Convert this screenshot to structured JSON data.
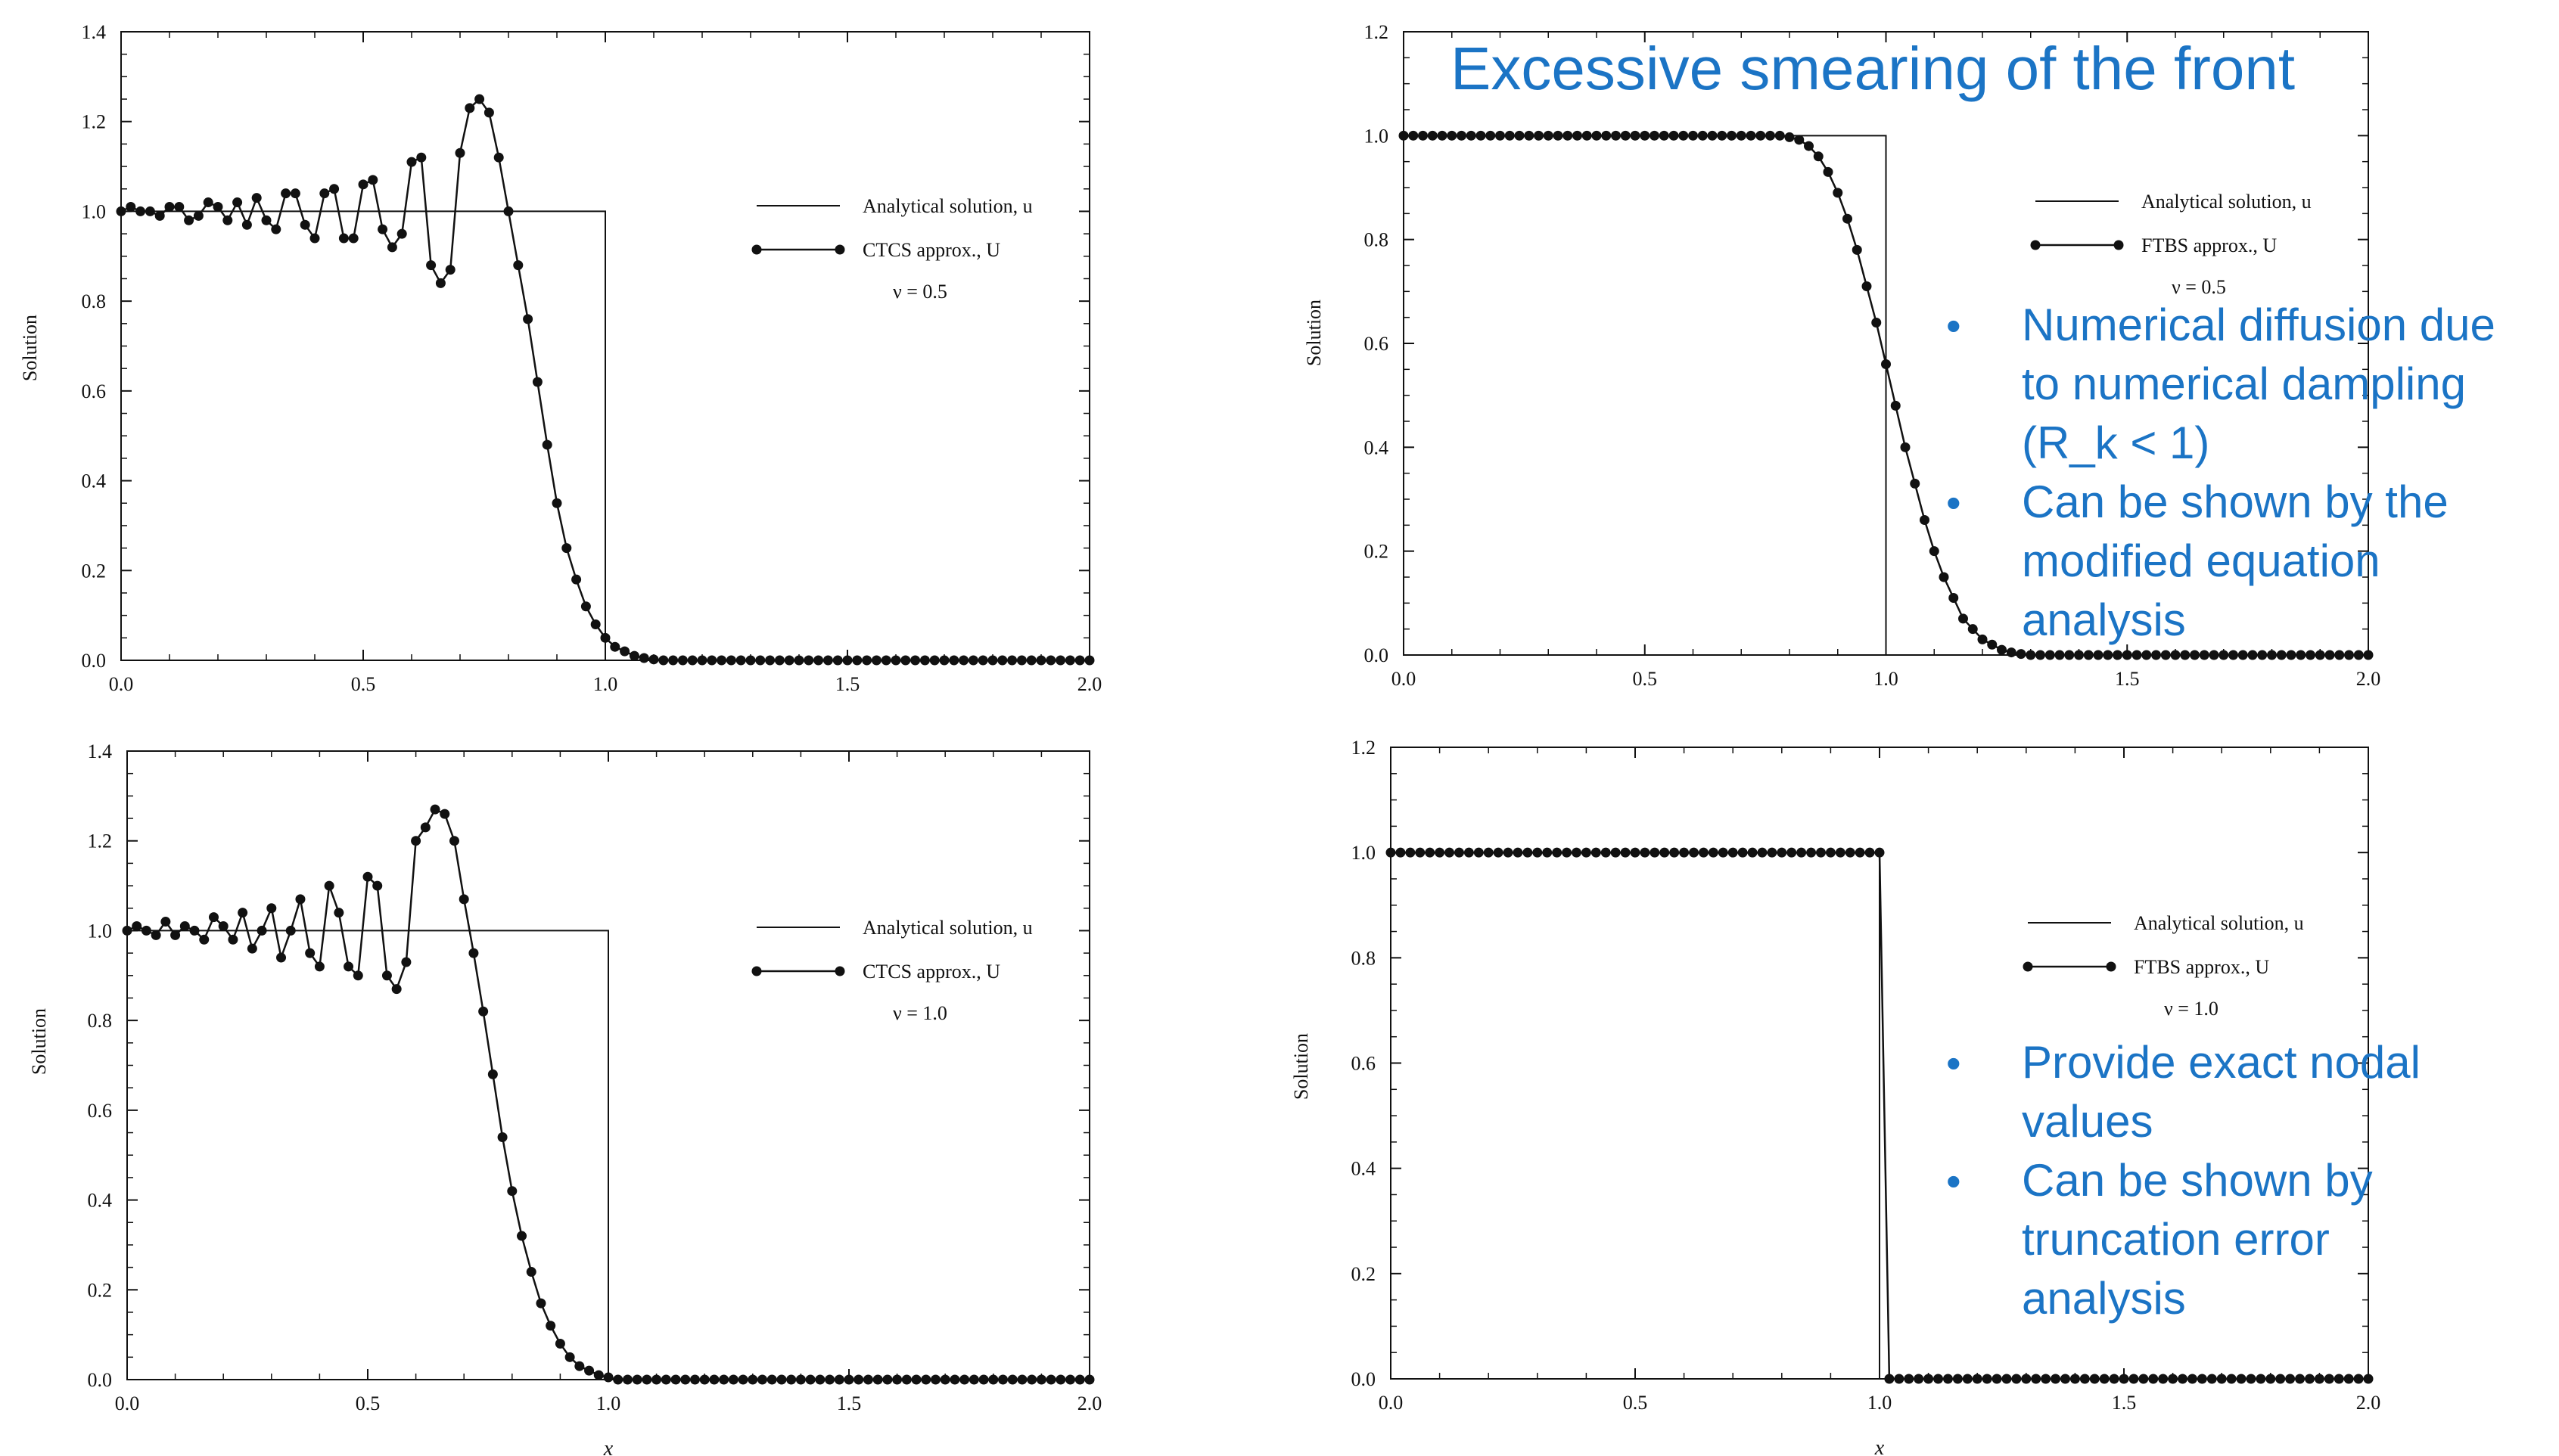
{
  "annotations": {
    "title": "Excessive smearing of the front",
    "top_right_bullets": [
      {
        "bullet": "•",
        "lines": [
          "Numerical diffusion due",
          "to numerical dampling",
          "(R_k < 1)"
        ]
      },
      {
        "bullet": "•",
        "lines": [
          "Can be shown by the",
          "modified equation",
          "analysis"
        ]
      }
    ],
    "bottom_right_bullets": [
      {
        "bullet": "•",
        "lines": [
          "Provide exact nodal",
          "values"
        ]
      },
      {
        "bullet": "•",
        "lines": [
          "Can be shown by",
          "truncation error",
          "analysis"
        ]
      }
    ],
    "color": "#1b74c5"
  },
  "chart_data": [
    {
      "type": "line",
      "ylabel": "Solution",
      "xlabel": "",
      "xlim": [
        0.0,
        2.0
      ],
      "ylim": [
        0.0,
        1.4
      ],
      "xticks": [
        "0.0",
        "0.5",
        "1.0",
        "1.5",
        "2.0"
      ],
      "yticks": [
        "0.0",
        "0.2",
        "0.4",
        "0.6",
        "0.8",
        "1.0",
        "1.2",
        "1.4"
      ],
      "legend": {
        "analytical": "Analytical solution, u",
        "approx": "CTCS approx., U",
        "param": "ν = 0.5",
        "placement": "right"
      },
      "series": [
        {
          "name": "Analytical solution, u",
          "kind": "step",
          "x": [
            0.0,
            1.0,
            1.0,
            2.0
          ],
          "y": [
            1.0,
            1.0,
            0.0,
            0.0
          ]
        },
        {
          "name": "CTCS approx., U",
          "kind": "markers",
          "x": [
            0.0,
            0.02,
            0.04,
            0.06,
            0.08,
            0.1,
            0.12,
            0.14,
            0.16,
            0.18,
            0.2,
            0.22,
            0.24,
            0.26,
            0.28,
            0.3,
            0.32,
            0.34,
            0.36,
            0.38,
            0.4,
            0.42,
            0.44,
            0.46,
            0.48,
            0.5,
            0.52,
            0.54,
            0.56,
            0.58,
            0.6,
            0.62,
            0.64,
            0.66,
            0.68,
            0.7,
            0.72,
            0.74,
            0.76,
            0.78,
            0.8,
            0.82,
            0.84,
            0.86,
            0.88,
            0.9,
            0.92,
            0.94,
            0.96,
            0.98,
            1.0,
            1.02,
            1.04,
            1.06,
            1.08,
            1.1,
            1.12,
            1.14,
            1.16,
            1.18,
            1.2,
            1.22,
            1.24,
            1.26,
            1.28,
            1.3,
            1.32,
            1.34,
            1.36,
            1.38,
            1.4,
            1.42,
            1.44,
            1.46,
            1.48,
            1.5,
            1.52,
            1.54,
            1.56,
            1.58,
            1.6,
            1.62,
            1.64,
            1.66,
            1.68,
            1.7,
            1.72,
            1.74,
            1.76,
            1.78,
            1.8,
            1.82,
            1.84,
            1.86,
            1.88,
            1.9,
            1.92,
            1.94,
            1.96,
            1.98,
            2.0
          ],
          "y": [
            1.0,
            1.01,
            1.0,
            1.0,
            0.99,
            1.01,
            1.01,
            0.98,
            0.99,
            1.02,
            1.01,
            0.98,
            1.02,
            0.97,
            1.03,
            0.98,
            0.96,
            1.04,
            1.04,
            0.97,
            0.94,
            1.04,
            1.05,
            0.94,
            0.94,
            1.06,
            1.07,
            0.96,
            0.92,
            0.95,
            1.11,
            1.12,
            0.88,
            0.84,
            0.87,
            1.13,
            1.23,
            1.25,
            1.22,
            1.12,
            1.0,
            0.88,
            0.76,
            0.62,
            0.48,
            0.35,
            0.25,
            0.18,
            0.12,
            0.08,
            0.05,
            0.03,
            0.02,
            0.01,
            0.005,
            0.002,
            0.0,
            0.0,
            0.0,
            0.0,
            0.0,
            0.0,
            0.0,
            0.0,
            0.0,
            0.0,
            0.0,
            0.0,
            0.0,
            0.0,
            0.0,
            0.0,
            0.0,
            0.0,
            0.0,
            0.0,
            0.0,
            0.0,
            0.0,
            0.0,
            0.0,
            0.0,
            0.0,
            0.0,
            0.0,
            0.0,
            0.0,
            0.0,
            0.0,
            0.0,
            0.0,
            0.0,
            0.0,
            0.0,
            0.0,
            0.0,
            0.0,
            0.0,
            0.0,
            0.0,
            0.0
          ]
        }
      ]
    },
    {
      "type": "line",
      "ylabel": "Solution",
      "xlabel": "",
      "xlim": [
        0.0,
        2.0
      ],
      "ylim": [
        0.0,
        1.2
      ],
      "xticks": [
        "0.0",
        "0.5",
        "1.0",
        "1.5",
        "2.0"
      ],
      "yticks": [
        "0.0",
        "0.2",
        "0.4",
        "0.6",
        "0.8",
        "1.0",
        "1.2"
      ],
      "legend": {
        "analytical": "Analytical solution, u",
        "approx": "FTBS approx., U",
        "param": "ν = 0.5",
        "placement": "right"
      },
      "series": [
        {
          "name": "Analytical solution, u",
          "kind": "step",
          "x": [
            0.0,
            1.0,
            1.0,
            2.0
          ],
          "y": [
            1.0,
            1.0,
            0.0,
            0.0
          ]
        },
        {
          "name": "FTBS approx., U",
          "kind": "markers",
          "x": [
            0.0,
            0.02,
            0.04,
            0.06,
            0.08,
            0.1,
            0.12,
            0.14,
            0.16,
            0.18,
            0.2,
            0.22,
            0.24,
            0.26,
            0.28,
            0.3,
            0.32,
            0.34,
            0.36,
            0.38,
            0.4,
            0.42,
            0.44,
            0.46,
            0.48,
            0.5,
            0.52,
            0.54,
            0.56,
            0.58,
            0.6,
            0.62,
            0.64,
            0.66,
            0.68,
            0.7,
            0.72,
            0.74,
            0.76,
            0.78,
            0.8,
            0.82,
            0.84,
            0.86,
            0.88,
            0.9,
            0.92,
            0.94,
            0.96,
            0.98,
            1.0,
            1.02,
            1.04,
            1.06,
            1.08,
            1.1,
            1.12,
            1.14,
            1.16,
            1.18,
            1.2,
            1.22,
            1.24,
            1.26,
            1.28,
            1.3,
            1.32,
            1.34,
            1.36,
            1.38,
            1.4,
            1.42,
            1.44,
            1.46,
            1.48,
            1.5,
            1.52,
            1.54,
            1.56,
            1.58,
            1.6,
            1.62,
            1.64,
            1.66,
            1.68,
            1.7,
            1.72,
            1.74,
            1.76,
            1.78,
            1.8,
            1.82,
            1.84,
            1.86,
            1.88,
            1.9,
            1.92,
            1.94,
            1.96,
            1.98,
            2.0
          ],
          "y": [
            1.0,
            1.0,
            1.0,
            1.0,
            1.0,
            1.0,
            1.0,
            1.0,
            1.0,
            1.0,
            1.0,
            1.0,
            1.0,
            1.0,
            1.0,
            1.0,
            1.0,
            1.0,
            1.0,
            1.0,
            1.0,
            1.0,
            1.0,
            1.0,
            1.0,
            1.0,
            1.0,
            1.0,
            1.0,
            1.0,
            1.0,
            1.0,
            1.0,
            1.0,
            1.0,
            1.0,
            1.0,
            1.0,
            1.0,
            1.0,
            0.997,
            0.992,
            0.98,
            0.96,
            0.93,
            0.89,
            0.84,
            0.78,
            0.71,
            0.64,
            0.56,
            0.48,
            0.4,
            0.33,
            0.26,
            0.2,
            0.15,
            0.11,
            0.07,
            0.05,
            0.03,
            0.02,
            0.01,
            0.005,
            0.002,
            0.0,
            0.0,
            0.0,
            0.0,
            0.0,
            0.0,
            0.0,
            0.0,
            0.0,
            0.0,
            0.0,
            0.0,
            0.0,
            0.0,
            0.0,
            0.0,
            0.0,
            0.0,
            0.0,
            0.0,
            0.0,
            0.0,
            0.0,
            0.0,
            0.0,
            0.0,
            0.0,
            0.0,
            0.0,
            0.0,
            0.0,
            0.0,
            0.0,
            0.0,
            0.0,
            0.0
          ]
        }
      ]
    },
    {
      "type": "line",
      "ylabel": "Solution",
      "xlabel": "x",
      "xlim": [
        0.0,
        2.0
      ],
      "ylim": [
        0.0,
        1.4
      ],
      "xticks": [
        "0.0",
        "0.5",
        "1.0",
        "1.5",
        "2.0"
      ],
      "yticks": [
        "0.0",
        "0.2",
        "0.4",
        "0.6",
        "0.8",
        "1.0",
        "1.2",
        "1.4"
      ],
      "legend": {
        "analytical": "Analytical solution, u",
        "approx": "CTCS approx., U",
        "param": "ν = 1.0",
        "placement": "right"
      },
      "series": [
        {
          "name": "Analytical solution, u",
          "kind": "step",
          "x": [
            0.0,
            1.0,
            1.0,
            2.0
          ],
          "y": [
            1.0,
            1.0,
            0.0,
            0.0
          ]
        },
        {
          "name": "CTCS approx., U",
          "kind": "markers",
          "x": [
            0.0,
            0.02,
            0.04,
            0.06,
            0.08,
            0.1,
            0.12,
            0.14,
            0.16,
            0.18,
            0.2,
            0.22,
            0.24,
            0.26,
            0.28,
            0.3,
            0.32,
            0.34,
            0.36,
            0.38,
            0.4,
            0.42,
            0.44,
            0.46,
            0.48,
            0.5,
            0.52,
            0.54,
            0.56,
            0.58,
            0.6,
            0.62,
            0.64,
            0.66,
            0.68,
            0.7,
            0.72,
            0.74,
            0.76,
            0.78,
            0.8,
            0.82,
            0.84,
            0.86,
            0.88,
            0.9,
            0.92,
            0.94,
            0.96,
            0.98,
            1.0,
            1.02,
            1.04,
            1.06,
            1.08,
            1.1,
            1.12,
            1.14,
            1.16,
            1.18,
            1.2,
            1.22,
            1.24,
            1.26,
            1.28,
            1.3,
            1.32,
            1.34,
            1.36,
            1.38,
            1.4,
            1.42,
            1.44,
            1.46,
            1.48,
            1.5,
            1.52,
            1.54,
            1.56,
            1.58,
            1.6,
            1.62,
            1.64,
            1.66,
            1.68,
            1.7,
            1.72,
            1.74,
            1.76,
            1.78,
            1.8,
            1.82,
            1.84,
            1.86,
            1.88,
            1.9,
            1.92,
            1.94,
            1.96,
            1.98,
            2.0
          ],
          "y": [
            1.0,
            1.01,
            1.0,
            0.99,
            1.02,
            0.99,
            1.01,
            1.0,
            0.98,
            1.03,
            1.01,
            0.98,
            1.04,
            0.96,
            1.0,
            1.05,
            0.94,
            1.0,
            1.07,
            0.95,
            0.92,
            1.1,
            1.04,
            0.92,
            0.9,
            1.12,
            1.1,
            0.9,
            0.87,
            0.93,
            1.2,
            1.23,
            1.27,
            1.26,
            1.2,
            1.07,
            0.95,
            0.82,
            0.68,
            0.54,
            0.42,
            0.32,
            0.24,
            0.17,
            0.12,
            0.08,
            0.05,
            0.03,
            0.02,
            0.01,
            0.005,
            0.0,
            0.0,
            0.0,
            0.0,
            0.0,
            0.0,
            0.0,
            0.0,
            0.0,
            0.0,
            0.0,
            0.0,
            0.0,
            0.0,
            0.0,
            0.0,
            0.0,
            0.0,
            0.0,
            0.0,
            0.0,
            0.0,
            0.0,
            0.0,
            0.0,
            0.0,
            0.0,
            0.0,
            0.0,
            0.0,
            0.0,
            0.0,
            0.0,
            0.0,
            0.0,
            0.0,
            0.0,
            0.0,
            0.0,
            0.0,
            0.0,
            0.0,
            0.0,
            0.0,
            0.0,
            0.0,
            0.0,
            0.0,
            0.0,
            0.0
          ]
        }
      ]
    },
    {
      "type": "line",
      "ylabel": "Solution",
      "xlabel": "x",
      "xlim": [
        0.0,
        2.0
      ],
      "ylim": [
        0.0,
        1.2
      ],
      "xticks": [
        "0.0",
        "0.5",
        "1.0",
        "1.5",
        "2.0"
      ],
      "yticks": [
        "0.0",
        "0.2",
        "0.4",
        "0.6",
        "0.8",
        "1.0",
        "1.2"
      ],
      "legend": {
        "analytical": "Analytical solution, u",
        "approx": "FTBS approx., U",
        "param": "ν = 1.0",
        "placement": "right"
      },
      "series": [
        {
          "name": "Analytical solution, u",
          "kind": "step",
          "x": [
            0.0,
            1.0,
            1.0,
            2.0
          ],
          "y": [
            1.0,
            1.0,
            0.0,
            0.0
          ]
        },
        {
          "name": "FTBS approx., U",
          "kind": "markers",
          "x": [
            0.0,
            0.02,
            0.04,
            0.06,
            0.08,
            0.1,
            0.12,
            0.14,
            0.16,
            0.18,
            0.2,
            0.22,
            0.24,
            0.26,
            0.28,
            0.3,
            0.32,
            0.34,
            0.36,
            0.38,
            0.4,
            0.42,
            0.44,
            0.46,
            0.48,
            0.5,
            0.52,
            0.54,
            0.56,
            0.58,
            0.6,
            0.62,
            0.64,
            0.66,
            0.68,
            0.7,
            0.72,
            0.74,
            0.76,
            0.78,
            0.8,
            0.82,
            0.84,
            0.86,
            0.88,
            0.9,
            0.92,
            0.94,
            0.96,
            0.98,
            1.0,
            1.02,
            1.04,
            1.06,
            1.08,
            1.1,
            1.12,
            1.14,
            1.16,
            1.18,
            1.2,
            1.22,
            1.24,
            1.26,
            1.28,
            1.3,
            1.32,
            1.34,
            1.36,
            1.38,
            1.4,
            1.42,
            1.44,
            1.46,
            1.48,
            1.5,
            1.52,
            1.54,
            1.56,
            1.58,
            1.6,
            1.62,
            1.64,
            1.66,
            1.68,
            1.7,
            1.72,
            1.74,
            1.76,
            1.78,
            1.8,
            1.82,
            1.84,
            1.86,
            1.88,
            1.9,
            1.92,
            1.94,
            1.96,
            1.98,
            2.0
          ],
          "y": [
            1.0,
            1.0,
            1.0,
            1.0,
            1.0,
            1.0,
            1.0,
            1.0,
            1.0,
            1.0,
            1.0,
            1.0,
            1.0,
            1.0,
            1.0,
            1.0,
            1.0,
            1.0,
            1.0,
            1.0,
            1.0,
            1.0,
            1.0,
            1.0,
            1.0,
            1.0,
            1.0,
            1.0,
            1.0,
            1.0,
            1.0,
            1.0,
            1.0,
            1.0,
            1.0,
            1.0,
            1.0,
            1.0,
            1.0,
            1.0,
            1.0,
            1.0,
            1.0,
            1.0,
            1.0,
            1.0,
            1.0,
            1.0,
            1.0,
            1.0,
            1.0,
            0.0,
            0.0,
            0.0,
            0.0,
            0.0,
            0.0,
            0.0,
            0.0,
            0.0,
            0.0,
            0.0,
            0.0,
            0.0,
            0.0,
            0.0,
            0.0,
            0.0,
            0.0,
            0.0,
            0.0,
            0.0,
            0.0,
            0.0,
            0.0,
            0.0,
            0.0,
            0.0,
            0.0,
            0.0,
            0.0,
            0.0,
            0.0,
            0.0,
            0.0,
            0.0,
            0.0,
            0.0,
            0.0,
            0.0,
            0.0,
            0.0,
            0.0,
            0.0,
            0.0,
            0.0,
            0.0,
            0.0,
            0.0,
            0.0,
            0.0
          ]
        }
      ]
    }
  ]
}
